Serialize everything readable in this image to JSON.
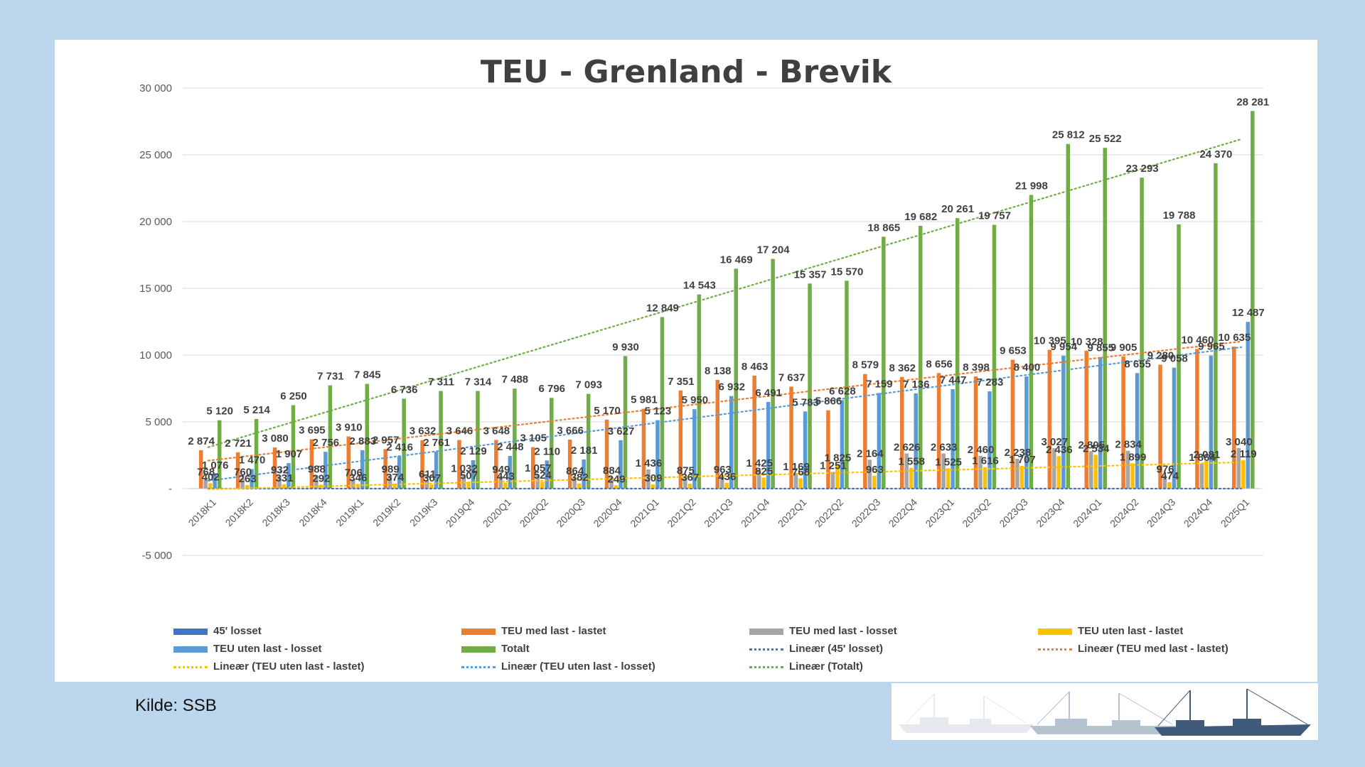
{
  "source": "Kilde: SSB",
  "chart_data": {
    "type": "bar",
    "title": "TEU - Grenland - Brevik",
    "ylim": [
      -5000,
      30000
    ],
    "yticks": [
      "30 000",
      "25 000",
      "20 000",
      "15 000",
      "10 000",
      "5 000",
      "-",
      "-5 000"
    ],
    "ytick_values": [
      30000,
      25000,
      20000,
      15000,
      10000,
      5000,
      0,
      -5000
    ],
    "grid": true,
    "legend_position": "bottom",
    "categories": [
      "2018K1",
      "2018K2",
      "2018K3",
      "2018K4",
      "2019K1",
      "2019K2",
      "2019K3",
      "2019Q4",
      "2020Q1",
      "2020Q2",
      "2020Q3",
      "2020Q4",
      "2021Q1",
      "2021Q2",
      "2021Q3",
      "2021Q4",
      "2022Q1",
      "2022Q2",
      "2022Q3",
      "2022Q4",
      "2023Q1",
      "2023Q2",
      "2023Q3",
      "2023Q4",
      "2024Q1",
      "2024Q2",
      "2024Q3",
      "2024Q4",
      "2025Q1"
    ],
    "series": [
      {
        "name": "45' losset",
        "color": "#4472c4",
        "values": [
          0,
          0,
          0,
          0,
          0,
          0,
          0,
          0,
          0,
          0,
          0,
          0,
          0,
          0,
          0,
          0,
          0,
          0,
          0,
          0,
          0,
          0,
          0,
          0,
          0,
          0,
          0,
          0,
          0
        ]
      },
      {
        "name": "TEU med last - lastet",
        "color": "#ed7d31",
        "values": [
          2874,
          2721,
          3080,
          3695,
          3910,
          2957,
          3632,
          3646,
          3648,
          3105,
          3666,
          5170,
          5981,
          7351,
          8138,
          8463,
          7637,
          5866,
          8579,
          8362,
          8656,
          8398,
          9653,
          10395,
          10328,
          9905,
          9280,
          10460,
          10635
        ],
        "labels": [
          "2 874",
          "2 721",
          "3 080",
          "3 695",
          "3 910",
          "2 957",
          "3 632",
          "3 646",
          "3 648",
          "3 105",
          "3 666",
          "5 170",
          "5 981",
          "7 351",
          "8 138",
          "8 463",
          "7 637",
          "5 866",
          "8 579",
          "8 362",
          "8 656",
          "8 398",
          "9 653",
          "10 395",
          "10 328",
          "9 905",
          "9 280",
          "10 460",
          "10 635"
        ]
      },
      {
        "name": "TEU med last - losset",
        "color": "#a5a5a5",
        "values": [
          768,
          760,
          932,
          988,
          706,
          989,
          611,
          1032,
          949,
          1057,
          864,
          884,
          1436,
          875,
          963,
          1425,
          1169,
          1251,
          2164,
          2626,
          2633,
          2460,
          2238,
          3027,
          2805,
          2834,
          976,
          1864,
          3040
        ],
        "labels": [
          "768",
          "760",
          "932",
          "988",
          "706",
          "989",
          "611",
          "1 032",
          "949",
          "1 057",
          "864",
          "884",
          "1 436",
          "875",
          "963",
          "1 425",
          "1 169",
          "1 251",
          "2 164",
          "2 626",
          "2 633",
          "2 460",
          "2 238",
          "3 027",
          "2 805",
          "2 834",
          "976",
          "1 864",
          "3 040"
        ]
      },
      {
        "name": "TEU uten last - lastet",
        "color": "#ffc000",
        "values": [
          402,
          263,
          331,
          292,
          346,
          374,
          307,
          507,
          443,
          524,
          382,
          249,
          309,
          367,
          436,
          825,
          768,
          1825,
          963,
          1558,
          1525,
          1616,
          1707,
          2436,
          2534,
          1899,
          474,
          2081,
          2119
        ],
        "labels": [
          "402",
          "263",
          "331",
          "292",
          "346",
          "374",
          "307",
          "507",
          "443",
          "524",
          "382",
          "249",
          "309",
          "367",
          "436",
          "825",
          "768",
          "1 825",
          "963",
          "1 558",
          "1 525",
          "1 616",
          "1 707",
          "2 436",
          "2 534",
          "1 899",
          "474",
          "2 081",
          "2 119"
        ]
      },
      {
        "name": "TEU uten last - losset",
        "color": "#5b9bd5",
        "values": [
          1076,
          1470,
          1907,
          2756,
          2883,
          2416,
          2761,
          2129,
          2448,
          2110,
          2181,
          3627,
          5123,
          5950,
          6932,
          6491,
          5783,
          6628,
          7159,
          7136,
          7447,
          7283,
          8400,
          9954,
          9855,
          8655,
          9058,
          9965,
          12487
        ],
        "labels": [
          "1 076",
          "1 470",
          "1 907",
          "2 756",
          "2 883",
          "2 416",
          "2 761",
          "2 129",
          "2 448",
          "2 110",
          "2 181",
          "3 627",
          "5 123",
          "5 950",
          "6 932",
          "6 491",
          "5 783",
          "6 628",
          "7 159",
          "7 136",
          "7 447",
          "7 283",
          "8 400",
          "9 954",
          "9 855",
          "8 655",
          "9 058",
          "9 965",
          "12 487"
        ]
      },
      {
        "name": "Totalt",
        "color": "#70ad47",
        "values": [
          5120,
          5214,
          6250,
          7731,
          7845,
          6736,
          7311,
          7314,
          7488,
          6796,
          7093,
          9930,
          12849,
          14543,
          16469,
          17204,
          15357,
          15570,
          18865,
          19682,
          20261,
          19757,
          21998,
          25812,
          25522,
          23293,
          19788,
          24370,
          28281
        ],
        "labels": [
          "5 120",
          "5 214",
          "6 250",
          "7 731",
          "7 845",
          "6 736",
          "7 311",
          "7 314",
          "7 488",
          "6 796",
          "7 093",
          "9 930",
          "12 849",
          "14 543",
          "16 469",
          "17 204",
          "15 357",
          "15 570",
          "18 865",
          "19 682",
          "20 261",
          "19 757",
          "21 998",
          "25 812",
          "25 522",
          "23 293",
          "19 788",
          "24 370",
          "28 281"
        ]
      }
    ],
    "trendlines": [
      {
        "name": "Lineær (45' losset)",
        "color": "#4472c4",
        "of": "45' losset"
      },
      {
        "name": "Lineær (TEU med last - lastet)",
        "color": "#ed7d31",
        "of": "TEU med last - lastet"
      },
      {
        "name": "Lineær (TEU uten last - lastet)",
        "color": "#ffc000",
        "of": "TEU uten last - lastet"
      },
      {
        "name": "Lineær (TEU uten last - losset)",
        "color": "#5b9bd5",
        "of": "TEU uten last - losset"
      },
      {
        "name": "Lineær (Totalt)",
        "color": "#70ad47",
        "of": "Totalt"
      }
    ]
  },
  "legend": [
    {
      "label": "45' losset",
      "color": "#4472c4",
      "style": "bar"
    },
    {
      "label": "TEU med last - lastet",
      "color": "#ed7d31",
      "style": "bar"
    },
    {
      "label": "TEU med last - losset",
      "color": "#a5a5a5",
      "style": "bar"
    },
    {
      "label": "TEU uten last - lastet",
      "color": "#ffc000",
      "style": "bar"
    },
    {
      "label": "TEU uten last - losset",
      "color": "#5b9bd5",
      "style": "bar"
    },
    {
      "label": "Totalt",
      "color": "#70ad47",
      "style": "bar"
    },
    {
      "label": "Lineær (45' losset)",
      "color": "#4472c4",
      "style": "dotted"
    },
    {
      "label": "Lineær (TEU med last - lastet)",
      "color": "#ed7d31",
      "style": "dotted"
    },
    {
      "label": "Lineær (TEU uten last - lastet)",
      "color": "#ffc000",
      "style": "dotted"
    },
    {
      "label": "Lineær (TEU uten last - losset)",
      "color": "#5b9bd5",
      "style": "dotted"
    },
    {
      "label": "Lineær (Totalt)",
      "color": "#70ad47",
      "style": "dotted"
    }
  ],
  "logo": {
    "name": "ship-silhouettes-logo"
  }
}
